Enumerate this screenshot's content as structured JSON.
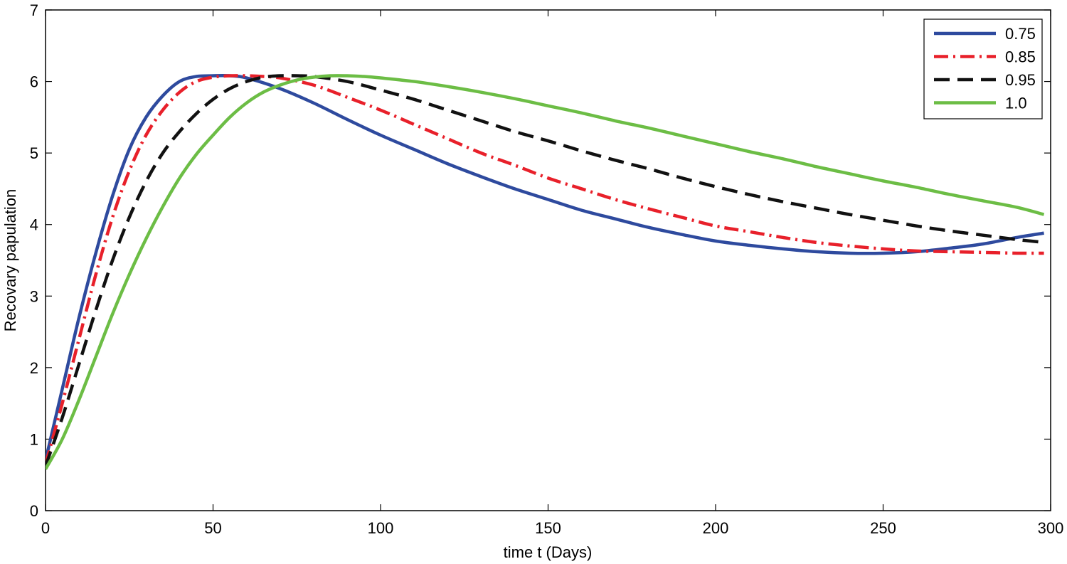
{
  "chart_data": {
    "type": "line",
    "title": "",
    "xlabel": "time t (Days)",
    "ylabel": "Recovary papulation",
    "xlim": [
      0,
      300
    ],
    "ylim": [
      0,
      7
    ],
    "xticks": [
      0,
      50,
      100,
      150,
      200,
      250,
      300
    ],
    "yticks": [
      0,
      1,
      2,
      3,
      4,
      5,
      6,
      7
    ],
    "grid": false,
    "legend_position": "top-right",
    "series": [
      {
        "name": "0.75",
        "color": "#2e4a9e",
        "style": "solid",
        "x": [
          0,
          5,
          10,
          15,
          20,
          25,
          30,
          35,
          40,
          45,
          50,
          55,
          60,
          70,
          80,
          90,
          100,
          110,
          120,
          130,
          140,
          150,
          160,
          170,
          180,
          190,
          200,
          210,
          220,
          230,
          240,
          250,
          260,
          270,
          280,
          290,
          298
        ],
        "y": [
          0.7,
          1.7,
          2.7,
          3.6,
          4.4,
          5.05,
          5.5,
          5.8,
          6.0,
          6.07,
          6.08,
          6.08,
          6.05,
          5.9,
          5.7,
          5.47,
          5.25,
          5.05,
          4.85,
          4.67,
          4.5,
          4.35,
          4.2,
          4.08,
          3.96,
          3.86,
          3.77,
          3.71,
          3.66,
          3.62,
          3.6,
          3.6,
          3.62,
          3.67,
          3.73,
          3.82,
          3.88
        ]
      },
      {
        "name": "0.85",
        "color": "#e8202a",
        "style": "dashdot",
        "x": [
          0,
          5,
          10,
          15,
          20,
          25,
          30,
          35,
          40,
          45,
          50,
          55,
          60,
          65,
          70,
          80,
          90,
          100,
          110,
          120,
          130,
          140,
          150,
          160,
          170,
          180,
          190,
          200,
          210,
          220,
          230,
          240,
          250,
          260,
          270,
          280,
          290,
          298
        ],
        "y": [
          0.65,
          1.5,
          2.4,
          3.3,
          4.1,
          4.75,
          5.25,
          5.6,
          5.85,
          6.0,
          6.06,
          6.08,
          6.08,
          6.07,
          6.05,
          5.95,
          5.78,
          5.6,
          5.4,
          5.2,
          5.0,
          4.83,
          4.65,
          4.5,
          4.35,
          4.22,
          4.1,
          3.98,
          3.9,
          3.82,
          3.75,
          3.7,
          3.66,
          3.63,
          3.62,
          3.61,
          3.6,
          3.6
        ]
      },
      {
        "name": "0.95",
        "color": "#111111",
        "style": "dashed",
        "x": [
          0,
          5,
          10,
          15,
          20,
          25,
          30,
          35,
          40,
          45,
          50,
          55,
          60,
          65,
          70,
          75,
          80,
          90,
          100,
          110,
          120,
          130,
          140,
          150,
          160,
          170,
          180,
          190,
          200,
          210,
          220,
          230,
          240,
          250,
          260,
          270,
          280,
          290,
          298
        ],
        "y": [
          0.62,
          1.3,
          2.05,
          2.8,
          3.5,
          4.1,
          4.6,
          5.0,
          5.3,
          5.55,
          5.75,
          5.9,
          6.0,
          6.06,
          6.08,
          6.08,
          6.07,
          6.0,
          5.88,
          5.75,
          5.6,
          5.45,
          5.3,
          5.17,
          5.03,
          4.9,
          4.78,
          4.65,
          4.53,
          4.42,
          4.32,
          4.23,
          4.14,
          4.06,
          3.98,
          3.91,
          3.85,
          3.79,
          3.75
        ]
      },
      {
        "name": "1.0",
        "color": "#6cbd45",
        "style": "solid",
        "x": [
          0,
          5,
          10,
          15,
          20,
          25,
          30,
          35,
          40,
          45,
          50,
          55,
          60,
          65,
          70,
          75,
          80,
          85,
          90,
          95,
          100,
          110,
          120,
          130,
          140,
          150,
          160,
          170,
          180,
          190,
          200,
          210,
          220,
          230,
          240,
          250,
          260,
          270,
          280,
          290,
          298
        ],
        "y": [
          0.58,
          1.0,
          1.55,
          2.15,
          2.75,
          3.3,
          3.8,
          4.25,
          4.65,
          4.98,
          5.25,
          5.5,
          5.7,
          5.85,
          5.95,
          6.02,
          6.06,
          6.08,
          6.08,
          6.07,
          6.05,
          6.0,
          5.93,
          5.85,
          5.76,
          5.66,
          5.56,
          5.45,
          5.35,
          5.24,
          5.13,
          5.02,
          4.92,
          4.81,
          4.71,
          4.61,
          4.52,
          4.42,
          4.33,
          4.24,
          4.14
        ]
      }
    ]
  }
}
